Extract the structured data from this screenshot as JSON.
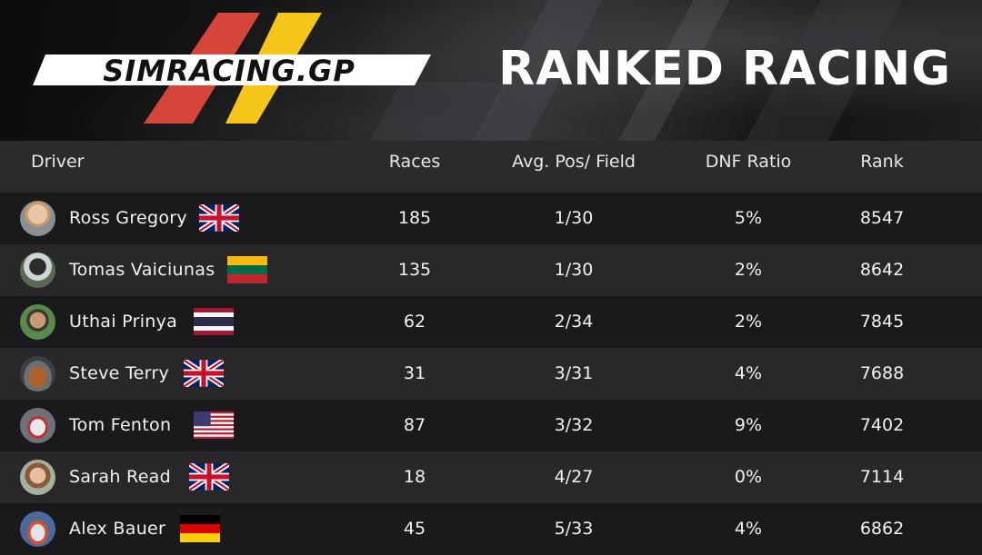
{
  "header": {
    "logo_text": "SIMRACING.GP",
    "title": "RANKED RACING",
    "colors": {
      "red": "#d6453a",
      "yellow": "#f5c518"
    }
  },
  "table": {
    "columns": {
      "driver": "Driver",
      "races": "Races",
      "avg": "Avg. Pos/ Field",
      "dnf": "DNF Ratio",
      "rank": "Rank"
    },
    "rows": [
      {
        "name": "Ross Gregory",
        "flag": "uk-flag-icon",
        "races": "185",
        "avg": "1/30",
        "dnf": "5%",
        "rank": "8547"
      },
      {
        "name": "Tomas Vaiciunas",
        "flag": "lithuania-flag-icon",
        "races": "135",
        "avg": "1/30",
        "dnf": "2%",
        "rank": "8642"
      },
      {
        "name": "Uthai Prinya",
        "flag": "thailand-flag-icon",
        "races": "62",
        "avg": "2/34",
        "dnf": "2%",
        "rank": "7845"
      },
      {
        "name": "Steve Terry",
        "flag": "uk-flag-icon",
        "races": "31",
        "avg": "3/31",
        "dnf": "4%",
        "rank": "7688"
      },
      {
        "name": "Tom Fenton",
        "flag": "usa-flag-icon",
        "races": "87",
        "avg": "3/32",
        "dnf": "9%",
        "rank": "7402"
      },
      {
        "name": "Sarah Read",
        "flag": "uk-flag-icon",
        "races": "18",
        "avg": "4/27",
        "dnf": "0%",
        "rank": "7114"
      },
      {
        "name": "Alex Bauer",
        "flag": "germany-flag-icon",
        "races": "45",
        "avg": "5/33",
        "dnf": "4%",
        "rank": "6862"
      }
    ]
  }
}
